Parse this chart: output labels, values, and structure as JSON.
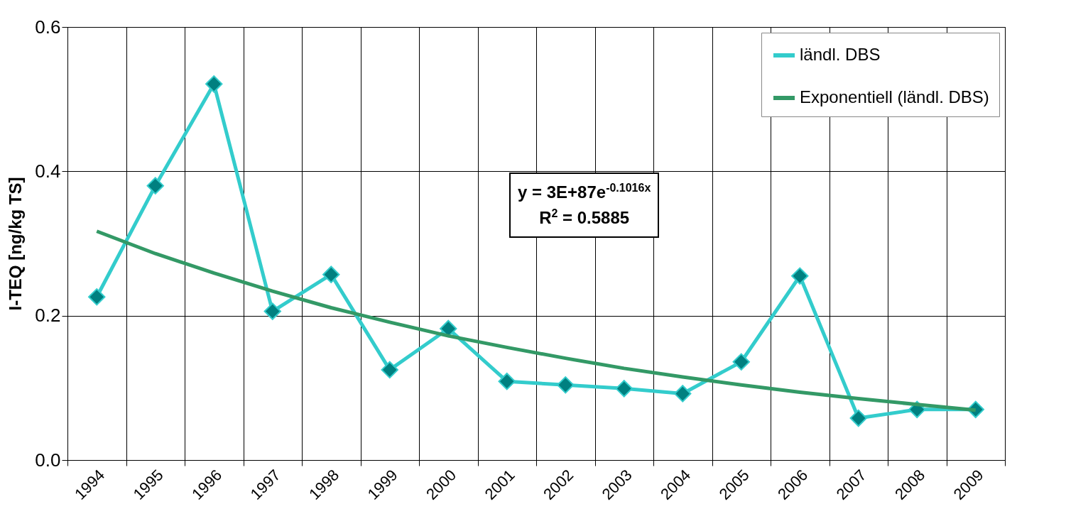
{
  "chart_data": {
    "type": "line",
    "ylabel": "I-TEQ [ng/kg TS]",
    "categories": [
      "1994",
      "1995",
      "1996",
      "1997",
      "1998",
      "1999",
      "2000",
      "2001",
      "2002",
      "2003",
      "2004",
      "2005",
      "2006",
      "2007",
      "2008",
      "2009"
    ],
    "series": [
      {
        "name": "ländl. DBS",
        "color": "#33cccc",
        "marker": "diamond",
        "values": [
          0.226,
          0.38,
          0.521,
          0.206,
          0.257,
          0.125,
          0.182,
          0.109,
          0.104,
          0.099,
          0.092,
          0.136,
          0.255,
          0.058,
          0.07,
          0.07
        ]
      },
      {
        "name": "Exponentiell (ländl. DBS)",
        "color": "#339966",
        "type": "line",
        "marker": "none",
        "values": [
          0.317,
          0.286,
          0.259,
          0.234,
          0.211,
          0.191,
          0.172,
          0.156,
          0.141,
          0.127,
          0.115,
          0.104,
          0.094,
          0.085,
          0.077,
          0.069
        ]
      }
    ],
    "ylim": [
      0,
      0.6
    ],
    "yticks": [
      {
        "value": 0,
        "label": "0.0"
      },
      {
        "value": 0.2,
        "label": "0.2"
      },
      {
        "value": 0.4,
        "label": "0.4"
      },
      {
        "value": 0.6,
        "label": "0.6"
      }
    ],
    "grid": true,
    "legend": "top right",
    "line_style": "solid",
    "annotations": [
      "y = 3E+87e$^{-0.1016x}$\nR$^{2}$ = 0.5885"
    ]
  }
}
